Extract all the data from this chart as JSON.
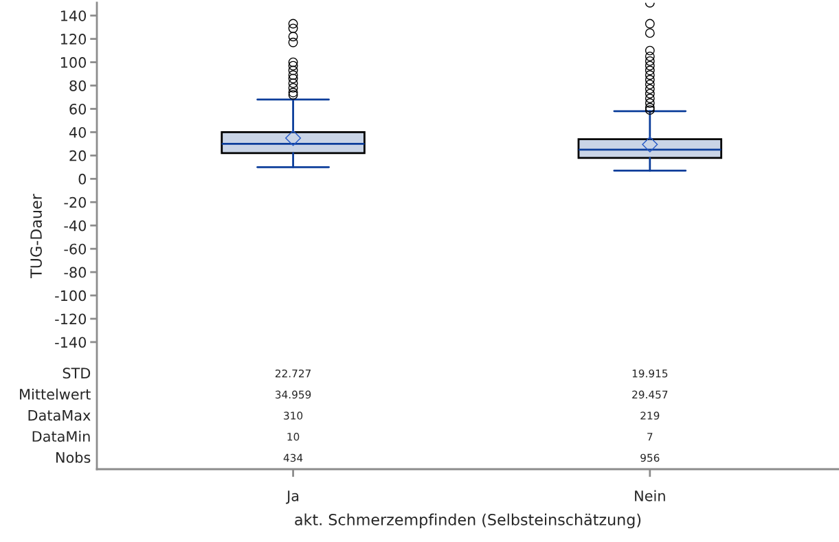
{
  "chart_data": {
    "type": "box",
    "xlabel": "akt. Schmerzempfinden (Selbsteinschätzung)",
    "ylabel": "TUG-Dauer",
    "categories": [
      "Ja",
      "Nein"
    ],
    "series": [
      {
        "color": "#c9d4e6",
        "boxes": [
          {
            "low": 10,
            "q1": 22,
            "median": 30,
            "q3": 40,
            "high": 68,
            "mean": 34.959,
            "outliers": [
              133,
              129,
              122,
              117,
              100,
              97,
              93,
              89,
              86,
              82,
              78,
              74,
              72
            ]
          },
          {
            "low": 7,
            "q1": 18,
            "median": 25,
            "q3": 34,
            "high": 58,
            "mean": 29.457,
            "outliers": [
              151,
              133,
              125,
              110,
              105,
              101,
              97,
              93,
              89,
              85,
              81,
              77,
              73,
              69,
              65,
              61,
              59
            ]
          }
        ]
      }
    ],
    "marker": "circle",
    "grid": false,
    "ylim": [
      -249,
      151
    ],
    "yticks": [
      -140,
      -120,
      -100,
      -80,
      -60,
      -40,
      -20,
      0,
      20,
      40,
      60,
      80,
      100,
      120,
      140
    ],
    "annotations": [
      "STD",
      "22.727",
      "19.915",
      "Mittelwert",
      "34.959",
      "29.457",
      "DataMax",
      "310",
      "219",
      "DataMin",
      "10",
      "7",
      "Nobs",
      "434",
      "956"
    ]
  }
}
